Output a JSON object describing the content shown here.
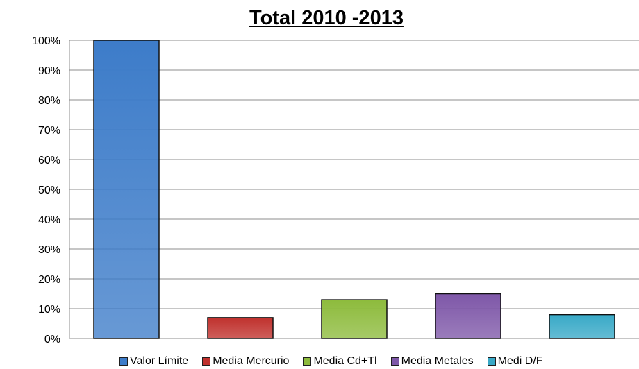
{
  "chart_data": {
    "type": "bar",
    "title": "Total 2010 -2013",
    "categories": [
      "Valor Límite",
      "Media Mercurio",
      "Media Cd+Tl",
      "Media Metales",
      "Medi D/F"
    ],
    "values": [
      100,
      7,
      13,
      15,
      8
    ],
    "unit": "%",
    "ylim": [
      0,
      100
    ],
    "yticks": [
      "0%",
      "10%",
      "20%",
      "30%",
      "40%",
      "50%",
      "60%",
      "70%",
      "80%",
      "90%",
      "100%"
    ],
    "grid": true,
    "legend_position": "bottom",
    "series_colors": [
      "#3d7cc9",
      "#c0312d",
      "#8dbb3c",
      "#7e57a8",
      "#38a9c7"
    ]
  }
}
